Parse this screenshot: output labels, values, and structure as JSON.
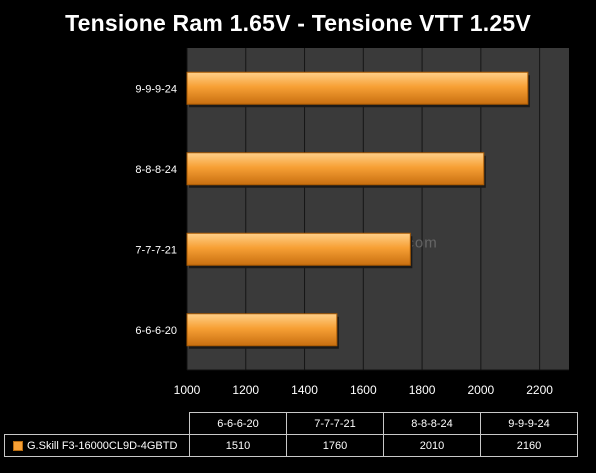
{
  "chart_data": {
    "type": "bar",
    "orientation": "horizontal",
    "title": "Tensione Ram 1.65V - Tensione VTT 1.25V",
    "categories": [
      "6-6-6-20",
      "7-7-7-21",
      "8-8-8-24",
      "9-9-9-24"
    ],
    "series": [
      {
        "name": "G.Skill F3-16000CL9D-4GBTD",
        "values": [
          1510,
          1760,
          2010,
          2160
        ]
      }
    ],
    "xlim": [
      1000,
      2300
    ],
    "xticks": [
      1000,
      1200,
      1400,
      1600,
      1800,
      2000,
      2200
    ],
    "grid": true,
    "bar_color": "#f7a035",
    "plot_background": "#3a3a3a",
    "data_table": true,
    "watermark": "nexthardware.com"
  }
}
